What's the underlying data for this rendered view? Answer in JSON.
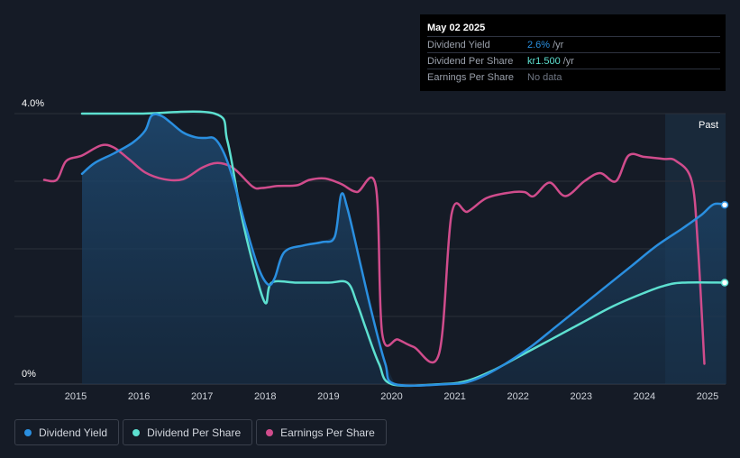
{
  "tooltip": {
    "date": "May 02 2025",
    "rows": [
      {
        "label": "Dividend Yield",
        "value": "2.6%",
        "unit": "/yr",
        "color": "#2a8fe0"
      },
      {
        "label": "Dividend Per Share",
        "value": "kr1.500",
        "unit": "/yr",
        "color": "#5de0d0"
      },
      {
        "label": "Earnings Per Share",
        "value": "No data",
        "unit": "",
        "color": "#6f7683"
      }
    ]
  },
  "legend": [
    {
      "label": "Dividend Yield",
      "color": "#2a8fe0"
    },
    {
      "label": "Dividend Per Share",
      "color": "#5de0d0"
    },
    {
      "label": "Earnings Per Share",
      "color": "#d04c8c"
    }
  ],
  "chart_data": {
    "type": "line",
    "x_ticks": [
      "2015",
      "2016",
      "2017",
      "2018",
      "2019",
      "2020",
      "2021",
      "2022",
      "2023",
      "2024",
      "2025"
    ],
    "y_ticks": [
      "0%",
      "4.0%"
    ],
    "ylim": [
      0,
      4.0
    ],
    "xlim": [
      2014.45,
      2025.3
    ],
    "past_label": "Past",
    "past_start": 2024.33,
    "series": [
      {
        "name": "Dividend Yield",
        "color": "#2a8fe0",
        "values": [
          [
            2015.1,
            3.11
          ],
          [
            2015.3,
            3.27
          ],
          [
            2015.6,
            3.41
          ],
          [
            2015.9,
            3.57
          ],
          [
            2016.1,
            3.75
          ],
          [
            2016.2,
            3.97
          ],
          [
            2016.35,
            3.97
          ],
          [
            2016.5,
            3.87
          ],
          [
            2016.7,
            3.72
          ],
          [
            2016.9,
            3.65
          ],
          [
            2017.05,
            3.64
          ],
          [
            2017.2,
            3.63
          ],
          [
            2017.35,
            3.41
          ],
          [
            2017.5,
            3.0
          ],
          [
            2017.7,
            2.3
          ],
          [
            2017.9,
            1.7
          ],
          [
            2018.05,
            1.47
          ],
          [
            2018.15,
            1.57
          ],
          [
            2018.3,
            1.95
          ],
          [
            2018.6,
            2.05
          ],
          [
            2018.9,
            2.1
          ],
          [
            2019.1,
            2.18
          ],
          [
            2019.2,
            2.8
          ],
          [
            2019.3,
            2.6
          ],
          [
            2019.5,
            1.8
          ],
          [
            2019.7,
            1.0
          ],
          [
            2019.9,
            0.3
          ],
          [
            2020.05,
            0.0
          ],
          [
            2020.9,
            0.0
          ],
          [
            2021.2,
            0.03
          ],
          [
            2021.5,
            0.14
          ],
          [
            2021.8,
            0.3
          ],
          [
            2022.2,
            0.55
          ],
          [
            2022.6,
            0.85
          ],
          [
            2023.0,
            1.15
          ],
          [
            2023.4,
            1.45
          ],
          [
            2023.8,
            1.75
          ],
          [
            2024.2,
            2.05
          ],
          [
            2024.6,
            2.3
          ],
          [
            2024.9,
            2.5
          ],
          [
            2025.1,
            2.66
          ],
          [
            2025.3,
            2.65
          ]
        ]
      },
      {
        "name": "Dividend Per Share",
        "color": "#5de0d0",
        "values": [
          [
            2015.1,
            4.0
          ],
          [
            2016.0,
            4.0
          ],
          [
            2017.2,
            4.0
          ],
          [
            2017.4,
            3.6
          ],
          [
            2017.6,
            2.6
          ],
          [
            2017.8,
            1.8
          ],
          [
            2018.0,
            1.2
          ],
          [
            2018.1,
            1.5
          ],
          [
            2018.5,
            1.5
          ],
          [
            2019.0,
            1.5
          ],
          [
            2019.3,
            1.5
          ],
          [
            2019.45,
            1.2
          ],
          [
            2019.6,
            0.8
          ],
          [
            2019.8,
            0.3
          ],
          [
            2020.0,
            0.0
          ],
          [
            2020.8,
            0.0
          ],
          [
            2021.2,
            0.05
          ],
          [
            2021.6,
            0.2
          ],
          [
            2022.0,
            0.4
          ],
          [
            2022.5,
            0.65
          ],
          [
            2023.0,
            0.9
          ],
          [
            2023.5,
            1.15
          ],
          [
            2024.0,
            1.35
          ],
          [
            2024.3,
            1.45
          ],
          [
            2024.6,
            1.5
          ],
          [
            2025.3,
            1.5
          ]
        ]
      },
      {
        "name": "Earnings Per Share",
        "color": "#d04c8c",
        "values": [
          [
            2014.5,
            3.02
          ],
          [
            2014.7,
            3.02
          ],
          [
            2014.85,
            3.3
          ],
          [
            2015.1,
            3.38
          ],
          [
            2015.4,
            3.53
          ],
          [
            2015.6,
            3.5
          ],
          [
            2015.85,
            3.32
          ],
          [
            2016.1,
            3.13
          ],
          [
            2016.4,
            3.03
          ],
          [
            2016.7,
            3.03
          ],
          [
            2017.0,
            3.2
          ],
          [
            2017.25,
            3.27
          ],
          [
            2017.5,
            3.19
          ],
          [
            2017.8,
            2.92
          ],
          [
            2017.95,
            2.9
          ],
          [
            2018.2,
            2.93
          ],
          [
            2018.5,
            2.94
          ],
          [
            2018.7,
            3.02
          ],
          [
            2018.95,
            3.04
          ],
          [
            2019.2,
            2.96
          ],
          [
            2019.45,
            2.84
          ],
          [
            2019.75,
            2.92
          ],
          [
            2019.85,
            0.75
          ],
          [
            2020.1,
            0.66
          ],
          [
            2020.35,
            0.55
          ],
          [
            2020.75,
            0.45
          ],
          [
            2020.95,
            2.52
          ],
          [
            2021.2,
            2.55
          ],
          [
            2021.5,
            2.75
          ],
          [
            2021.85,
            2.83
          ],
          [
            2022.1,
            2.84
          ],
          [
            2022.25,
            2.78
          ],
          [
            2022.5,
            2.98
          ],
          [
            2022.75,
            2.78
          ],
          [
            2023.05,
            3.0
          ],
          [
            2023.3,
            3.12
          ],
          [
            2023.55,
            3.0
          ],
          [
            2023.75,
            3.38
          ],
          [
            2024.0,
            3.36
          ],
          [
            2024.3,
            3.33
          ],
          [
            2024.5,
            3.3
          ],
          [
            2024.75,
            3.0
          ],
          [
            2024.85,
            2.0
          ],
          [
            2024.95,
            0.3
          ]
        ]
      }
    ]
  }
}
